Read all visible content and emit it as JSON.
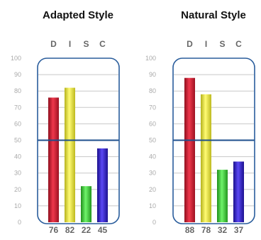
{
  "chart_data": [
    {
      "type": "bar",
      "title": "Adapted Style",
      "categories": [
        "D",
        "I",
        "S",
        "C"
      ],
      "values": [
        76,
        82,
        22,
        45
      ],
      "ylim": [
        0,
        100
      ],
      "yticks": [
        "0",
        "10",
        "20",
        "30",
        "40",
        "50",
        "60",
        "70",
        "80",
        "90",
        "100"
      ],
      "reference_line": 50,
      "grid": true,
      "colors": [
        "#d81f35",
        "#f2ef3a",
        "#3fd23a",
        "#3a25d4"
      ]
    },
    {
      "type": "bar",
      "title": "Natural Style",
      "categories": [
        "D",
        "I",
        "S",
        "C"
      ],
      "values": [
        88,
        78,
        32,
        37
      ],
      "ylim": [
        0,
        100
      ],
      "yticks": [
        "0",
        "10",
        "20",
        "30",
        "40",
        "50",
        "60",
        "70",
        "80",
        "90",
        "100"
      ],
      "reference_line": 50,
      "grid": true,
      "colors": [
        "#d81f35",
        "#f2ef3a",
        "#3fd23a",
        "#3a25d4"
      ]
    }
  ],
  "frame_color": "#2a5d9c",
  "grid_color": "#c8c8c8",
  "midline_color": "#1d4f8c"
}
